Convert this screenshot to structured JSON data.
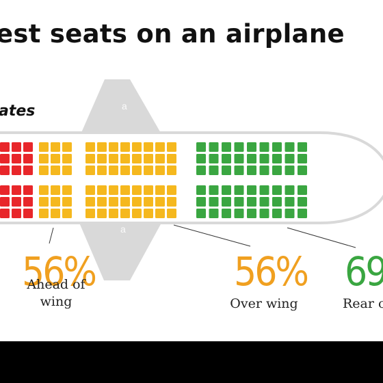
{
  "title": "est seats on an airplane",
  "subtitle": "ates",
  "watermark": "a",
  "colors": {
    "plane": "#d9d9d9",
    "red": "#e8262a",
    "yellow": "#f5b81e",
    "green": "#3aa641",
    "orange_text": "#f0a020",
    "green_text": "#3aa641"
  },
  "sections": [
    {
      "id": "front",
      "color": "red",
      "columns": 3,
      "value": "",
      "label": ""
    },
    {
      "id": "ahead",
      "color": "yellow",
      "columns": 3,
      "value": "56%",
      "label": "Ahead of\nwing"
    },
    {
      "id": "over",
      "color": "yellow",
      "columns": 8,
      "value": "56%",
      "label": "Over wing"
    },
    {
      "id": "rear",
      "color": "green",
      "columns": 9,
      "value": "69",
      "label": "Rear c"
    }
  ]
}
